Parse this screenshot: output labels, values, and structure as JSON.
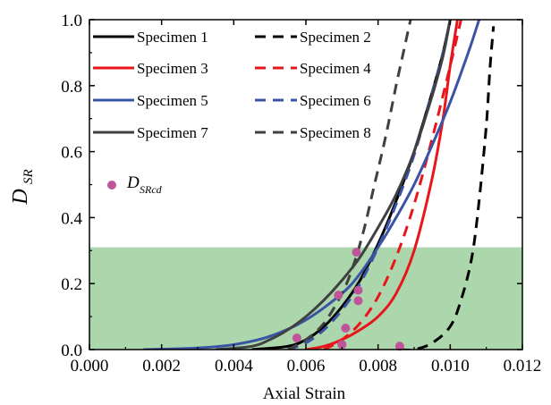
{
  "chart_data": {
    "type": "line",
    "xlabel": "Axial Strain",
    "ylabel": {
      "main": "D",
      "sub": "SR"
    },
    "xlim": [
      0.0,
      0.012
    ],
    "ylim": [
      0.0,
      1.0
    ],
    "xticks": [
      "0.000",
      "0.002",
      "0.004",
      "0.006",
      "0.008",
      "0.010",
      "0.012"
    ],
    "yticks": [
      "0.0",
      "0.2",
      "0.4",
      "0.6",
      "0.8",
      "1.0"
    ],
    "shaded_band": {
      "y_from": 0.0,
      "y_to": 0.31,
      "color": "#a8d5a8"
    },
    "legend_position": "top-left",
    "series": [
      {
        "name": "Specimen 1",
        "color": "#000000",
        "dash": "solid",
        "x": [
          0.0045,
          0.0055,
          0.006,
          0.0065,
          0.007,
          0.0075,
          0.008,
          0.0085,
          0.009,
          0.0095,
          0.0098,
          0.01
        ],
        "y": [
          0.0,
          0.01,
          0.03,
          0.07,
          0.13,
          0.21,
          0.32,
          0.45,
          0.6,
          0.78,
          0.9,
          1.0
        ]
      },
      {
        "name": "Specimen 2",
        "color": "#000000",
        "dash": "dashed",
        "x": [
          0.0086,
          0.009,
          0.0095,
          0.01,
          0.0103,
          0.0106,
          0.0108,
          0.011,
          0.0111,
          0.0112
        ],
        "y": [
          0.0,
          0.0,
          0.02,
          0.07,
          0.15,
          0.28,
          0.45,
          0.68,
          0.85,
          0.98
        ]
      },
      {
        "name": "Specimen 3",
        "color": "#e8161b",
        "dash": "solid",
        "x": [
          0.006,
          0.0065,
          0.007,
          0.0075,
          0.008,
          0.0085,
          0.009,
          0.0095,
          0.0098,
          0.01,
          0.0102
        ],
        "y": [
          0.0,
          0.01,
          0.03,
          0.06,
          0.1,
          0.17,
          0.3,
          0.52,
          0.7,
          0.86,
          1.0
        ]
      },
      {
        "name": "Specimen 4",
        "color": "#e8161b",
        "dash": "dashed",
        "x": [
          0.0065,
          0.007,
          0.0075,
          0.008,
          0.0085,
          0.009,
          0.0095,
          0.01,
          0.0103
        ],
        "y": [
          0.0,
          0.03,
          0.08,
          0.16,
          0.28,
          0.44,
          0.64,
          0.86,
          1.0
        ]
      },
      {
        "name": "Specimen 5",
        "color": "#3a53a4",
        "dash": "solid",
        "x": [
          0.0015,
          0.003,
          0.004,
          0.005,
          0.006,
          0.007,
          0.0075,
          0.008,
          0.0085,
          0.009,
          0.0095,
          0.01,
          0.0105,
          0.0108
        ],
        "y": [
          0.0,
          0.005,
          0.015,
          0.04,
          0.09,
          0.17,
          0.23,
          0.31,
          0.4,
          0.5,
          0.62,
          0.75,
          0.9,
          1.0
        ]
      },
      {
        "name": "Specimen 6",
        "color": "#3a53a4",
        "dash": "dashed",
        "x": [
          0.0055,
          0.006,
          0.0065,
          0.007,
          0.0075,
          0.008,
          0.0085,
          0.009,
          0.0095,
          0.0098,
          0.01
        ],
        "y": [
          0.0,
          0.02,
          0.06,
          0.12,
          0.2,
          0.31,
          0.44,
          0.59,
          0.78,
          0.9,
          1.0
        ]
      },
      {
        "name": "Specimen 7",
        "color": "#404040",
        "dash": "solid",
        "x": [
          0.0035,
          0.0045,
          0.005,
          0.0055,
          0.006,
          0.0065,
          0.007,
          0.0075,
          0.008,
          0.0085,
          0.009,
          0.0095,
          0.0098,
          0.01
        ],
        "y": [
          0.0,
          0.01,
          0.03,
          0.06,
          0.1,
          0.15,
          0.21,
          0.28,
          0.37,
          0.47,
          0.6,
          0.77,
          0.89,
          1.0
        ]
      },
      {
        "name": "Specimen 8",
        "color": "#404040",
        "dash": "dashed",
        "x": [
          0.0055,
          0.006,
          0.0065,
          0.007,
          0.0073,
          0.0076,
          0.0079,
          0.0082,
          0.0085,
          0.0087,
          0.0089
        ],
        "y": [
          0.0,
          0.03,
          0.08,
          0.17,
          0.25,
          0.36,
          0.5,
          0.64,
          0.8,
          0.9,
          1.0
        ]
      }
    ],
    "markers": {
      "name": "D",
      "sub": "SRcd",
      "color": "#c0549a",
      "points": [
        {
          "x": 0.00575,
          "y": 0.035
        },
        {
          "x": 0.0069,
          "y": 0.165
        },
        {
          "x": 0.007,
          "y": 0.015
        },
        {
          "x": 0.0071,
          "y": 0.065
        },
        {
          "x": 0.0074,
          "y": 0.295
        },
        {
          "x": 0.00745,
          "y": 0.18
        },
        {
          "x": 0.00745,
          "y": 0.148
        },
        {
          "x": 0.0086,
          "y": 0.01
        }
      ]
    }
  }
}
